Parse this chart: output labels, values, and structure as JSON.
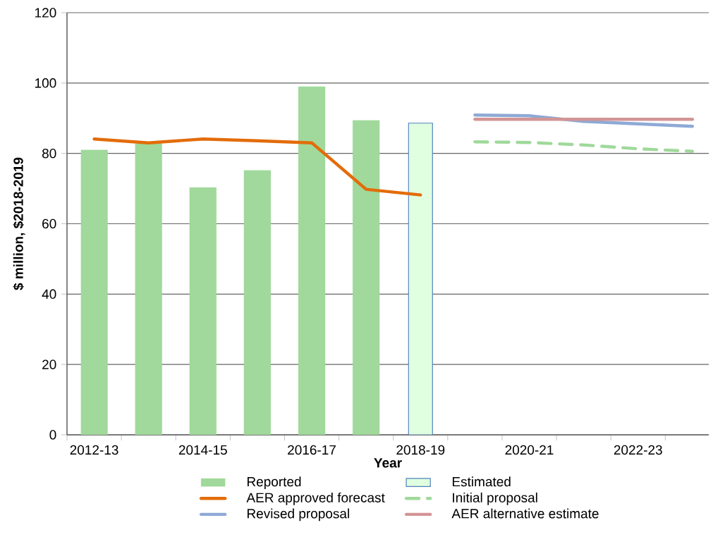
{
  "chart_data": {
    "type": "bar",
    "xlabel": "Year",
    "ylabel": "$ million, $2018-2019",
    "categories": [
      "2012-13",
      null,
      "2014-15",
      null,
      "2016-17",
      null,
      "2018-19",
      null,
      "2020-21",
      null,
      "2022-23",
      null
    ],
    "series": [
      {
        "name": "Reported",
        "color": "#a0d99b",
        "values": [
          81,
          82.8,
          70.3,
          75.2,
          99,
          89.4,
          null,
          null,
          null,
          null,
          null,
          null
        ]
      },
      {
        "name": "Estimated",
        "color": "#4f81bd",
        "values": [
          null,
          null,
          null,
          null,
          null,
          null,
          88.6,
          null,
          null,
          null,
          null,
          null
        ]
      },
      {
        "name": "AER approved forecast",
        "type": "line",
        "color": "#e36c0a",
        "line_style": "solid",
        "values": [
          84.1,
          83,
          84.1,
          83.6,
          83,
          69.8,
          68.2,
          null,
          null,
          null,
          null,
          null
        ]
      },
      {
        "name": "Initial proposal",
        "type": "line",
        "color": "#a0d99b",
        "line_style": "dashed",
        "values": [
          null,
          null,
          null,
          null,
          null,
          null,
          null,
          83.3,
          83.1,
          82.4,
          81.3,
          80.6
        ]
      },
      {
        "name": "Revised proposal",
        "type": "line",
        "color": "#8ea9d5",
        "line_style": "solid",
        "values": [
          null,
          null,
          null,
          null,
          null,
          null,
          null,
          90.9,
          90.7,
          89.1,
          88.4,
          87.7
        ]
      },
      {
        "name": "AER alternative estimate",
        "type": "line",
        "color": "#d39595",
        "line_style": "solid",
        "values": [
          null,
          null,
          null,
          null,
          null,
          null,
          null,
          89.7,
          89.7,
          89.7,
          89.7,
          89.7
        ]
      }
    ],
    "ylim": [
      0,
      120
    ],
    "yticks": [
      0,
      20,
      40,
      60,
      80,
      100,
      120
    ],
    "grid": "y",
    "legend": "bottom",
    "marker": "none"
  }
}
